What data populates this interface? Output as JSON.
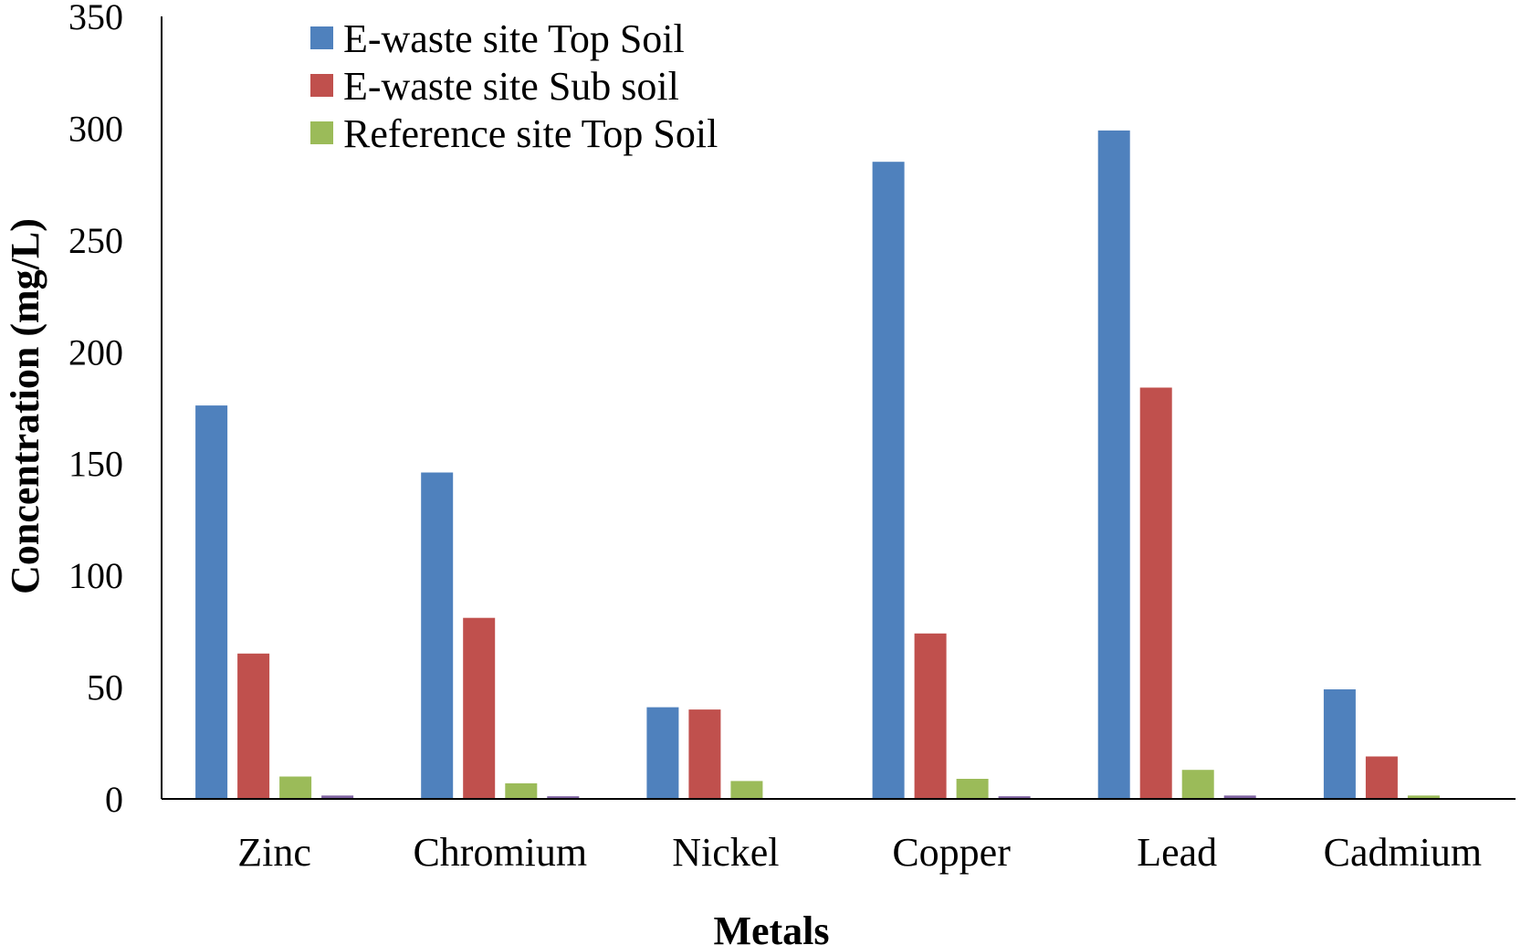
{
  "chart_data": {
    "type": "bar",
    "categories": [
      "Zinc",
      "Chromium",
      "Nickel",
      "Copper",
      "Lead",
      "Cadmium"
    ],
    "series": [
      {
        "name": "E-waste site Top Soil",
        "color": "#4F81BD",
        "values": [
          176,
          146,
          41,
          285,
          299,
          49
        ]
      },
      {
        "name": "E-waste site Sub soil",
        "color": "#C0504D",
        "values": [
          65,
          81,
          40,
          74,
          184,
          19
        ]
      },
      {
        "name": "Reference site Top Soil",
        "color": "#9BBB59",
        "values": [
          10,
          7,
          8,
          9,
          13,
          1.5
        ]
      },
      {
        "name": "",
        "color": "#8064A2",
        "values": [
          1.5,
          1.2,
          0.4,
          1.2,
          1.5,
          0.3
        ]
      }
    ],
    "xlabel": "Metals",
    "ylabel": "Concentration (mg/L)",
    "ylim": [
      0,
      350
    ],
    "yticks": [
      0,
      50,
      100,
      150,
      200,
      250,
      300,
      350
    ],
    "grid": false,
    "legend_position": "top-left"
  }
}
